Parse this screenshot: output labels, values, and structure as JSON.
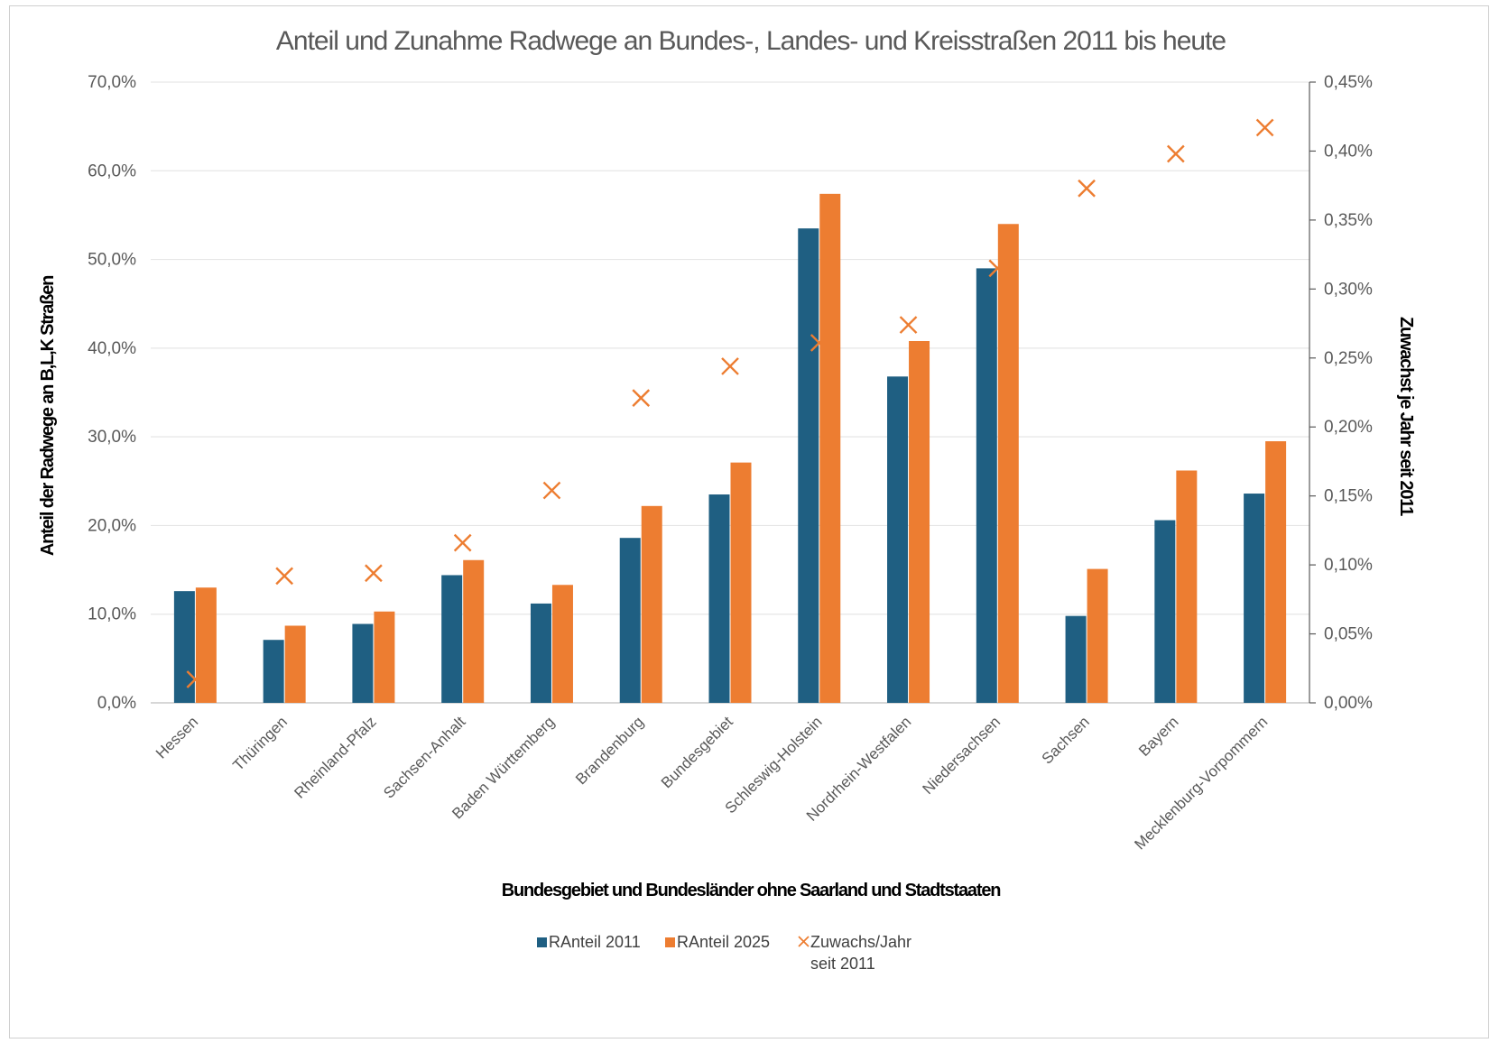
{
  "chart_data": {
    "type": "bar",
    "title": "Anteil und Zunahme Radwege an Bundes-, Landes- und Kreisstraßen 2011 bis heute",
    "xlabel": "Bundesgebiet und Bundesländer ohne Saarland und Stadtstaaten",
    "ylabel": "Anteil der Radwege an B,L,K Straßen",
    "y2label": "Zuwachst je Jahr seit 2011",
    "ylim": [
      0,
      70
    ],
    "y2lim": [
      0,
      0.45
    ],
    "yticks": [
      "0,0%",
      "10,0%",
      "20,0%",
      "30,0%",
      "40,0%",
      "50,0%",
      "60,0%",
      "70,0%"
    ],
    "y2ticks": [
      "0,00%",
      "0,05%",
      "0,10%",
      "0,15%",
      "0,20%",
      "0,25%",
      "0,30%",
      "0,35%",
      "0,40%",
      "0,45%"
    ],
    "grid": true,
    "legend_position": "bottom",
    "categories": [
      "Hessen",
      "Thüringen",
      "Rheinland-Pfalz",
      "Sachsen-Anhalt",
      "Baden Württemberg",
      "Brandenburg",
      "Bundesgebiet",
      "Schleswig-Holstein",
      "Nordrhein-Westfalen",
      "Niedersachsen",
      "Sachsen",
      "Bayern",
      "Mecklenburg-Vorpommern"
    ],
    "series": [
      {
        "name": "RAnteil 2011",
        "type": "bar",
        "axis": "left",
        "color": "#1f5f82",
        "values": [
          12.6,
          7.1,
          8.9,
          14.4,
          11.2,
          18.6,
          23.5,
          53.5,
          36.8,
          49.0,
          9.8,
          20.6,
          23.6
        ]
      },
      {
        "name": "RAnteil 2025",
        "type": "bar",
        "axis": "left",
        "color": "#ed7d31",
        "values": [
          13.0,
          8.7,
          10.3,
          16.1,
          13.3,
          22.2,
          27.1,
          57.4,
          40.8,
          54.0,
          15.1,
          26.2,
          29.5
        ]
      },
      {
        "name": "Zuwachs/Jahr seit 2011",
        "type": "scatter",
        "axis": "right",
        "color": "#ed7d31",
        "marker": "x",
        "values": [
          0.017,
          0.092,
          0.094,
          0.116,
          0.154,
          0.221,
          0.244,
          0.261,
          0.274,
          0.315,
          0.373,
          0.398,
          0.417
        ]
      }
    ]
  }
}
